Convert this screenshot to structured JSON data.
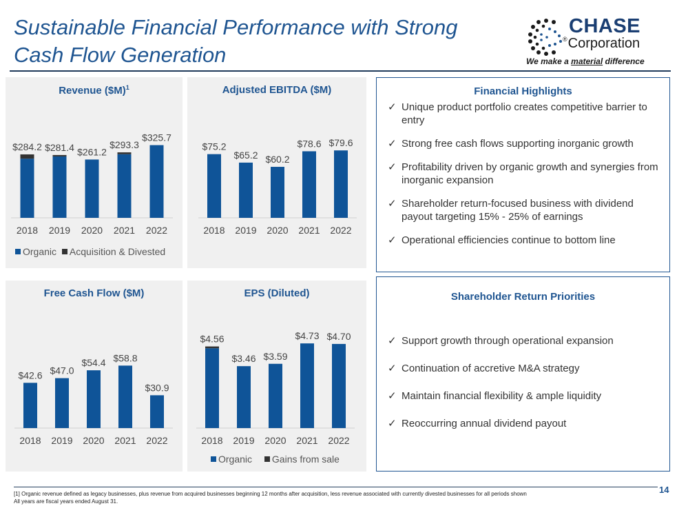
{
  "slide": {
    "title_line1": "Sustainable Financial Performance with Strong",
    "title_line2": "Cash Flow Generation",
    "page_number": "14",
    "footnote_line1": "[1] Organic revenue defined as legacy businesses, plus revenue from acquired businesses beginning 12 months after acquisition, less revenue associated with currently divested businesses for all periods shown",
    "footnote_line2": "All years are fiscal years ended August 31."
  },
  "logo": {
    "name": "CHASE",
    "sub": "Corporation",
    "tagline_pre": "We make a ",
    "tagline_em": "material",
    "tagline_post": " difference",
    "registered": "®"
  },
  "colors": {
    "primary": "#1f5591",
    "bar": "#0f5498",
    "secondary_bar": "#333333",
    "panel_bg": "#f0f0f0"
  },
  "chart_data": [
    {
      "id": "revenue",
      "type": "bar",
      "title": "Revenue ($M)",
      "title_sup": "1",
      "categories": [
        "2018",
        "2019",
        "2020",
        "2021",
        "2022"
      ],
      "series": [
        {
          "name": "Organic",
          "values": [
            265.0,
            275.0,
            261.2,
            285.0,
            325.7
          ]
        },
        {
          "name": "Acquisition & Divested",
          "values": [
            19.2,
            6.4,
            0,
            8.3,
            0
          ]
        }
      ],
      "labels": [
        "$284.2",
        "$281.4",
        "$261.2",
        "$293.3",
        "$325.7"
      ],
      "totals": [
        284.2,
        281.4,
        261.2,
        293.3,
        325.7
      ],
      "ylim": [
        0,
        420
      ],
      "legend": true
    },
    {
      "id": "ebitda",
      "type": "bar",
      "title": "Adjusted EBITDA ($M)",
      "categories": [
        "2018",
        "2019",
        "2020",
        "2021",
        "2022"
      ],
      "series": [
        {
          "name": "Adjusted EBITDA",
          "values": [
            75.2,
            65.2,
            60.2,
            78.6,
            79.6
          ]
        }
      ],
      "labels": [
        "$75.2",
        "$65.2",
        "$60.2",
        "$78.6",
        "$79.6"
      ],
      "totals": [
        75.2,
        65.2,
        60.2,
        78.6,
        79.6
      ],
      "ylim": [
        0,
        105
      ],
      "legend": false
    },
    {
      "id": "fcf",
      "type": "bar",
      "title": "Free Cash Flow ($M)",
      "categories": [
        "2018",
        "2019",
        "2020",
        "2021",
        "2022"
      ],
      "series": [
        {
          "name": "Free Cash Flow",
          "values": [
            42.6,
            47.0,
            54.4,
            58.8,
            30.9
          ]
        }
      ],
      "labels": [
        "$42.6",
        "$47.0",
        "$54.4",
        "$58.8",
        "$30.9"
      ],
      "totals": [
        42.6,
        47.0,
        54.4,
        58.8,
        30.9
      ],
      "ylim": [
        0,
        85
      ],
      "legend": false
    },
    {
      "id": "eps",
      "type": "bar",
      "title": "EPS (Diluted)",
      "categories": [
        "2018",
        "2019",
        "2020",
        "2021",
        "2022"
      ],
      "series": [
        {
          "name": "Organic",
          "values": [
            4.46,
            3.46,
            3.59,
            4.73,
            4.7
          ]
        },
        {
          "name": "Gains from sale",
          "values": [
            0.1,
            0,
            0,
            0,
            0
          ]
        }
      ],
      "labels": [
        "$4.56",
        "$3.46",
        "$3.59",
        "$4.73",
        "$4.70"
      ],
      "totals": [
        4.56,
        3.46,
        3.59,
        4.73,
        4.7
      ],
      "ylim": [
        0,
        6.2
      ],
      "legend": true
    }
  ],
  "highlights": {
    "title": "Financial Highlights",
    "items": [
      "Unique product portfolio creates competitive barrier to entry",
      "Strong free cash flows supporting inorganic growth",
      "Profitability driven by organic growth and synergies from inorganic expansion",
      "Shareholder return-focused business with dividend payout targeting 15% - 25% of earnings",
      "Operational efficiencies continue to bottom line"
    ]
  },
  "priorities": {
    "title": "Shareholder Return Priorities",
    "items": [
      "Support growth through operational expansion",
      "Continuation of accretive M&A strategy",
      "Maintain financial flexibility & ample liquidity",
      "Reoccurring annual dividend payout"
    ]
  }
}
